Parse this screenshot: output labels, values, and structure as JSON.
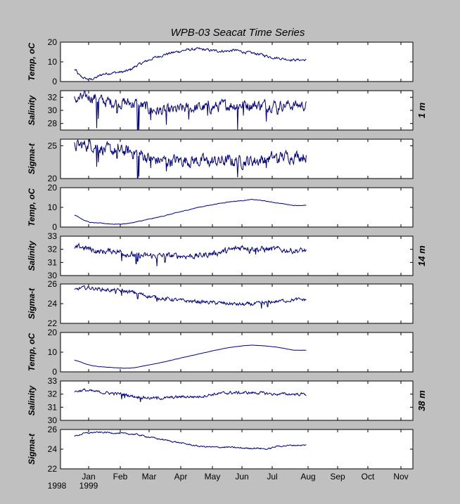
{
  "title": "WPB-03  Seacat Time Series",
  "colors": {
    "background": "#c0c0c0",
    "axes": "#ffffff",
    "line": "#000080",
    "text": "#000000"
  },
  "x_ticks": [
    "Jan",
    "Feb",
    "Mar",
    "Apr",
    "May",
    "Jun",
    "Jul",
    "Aug",
    "Sep",
    "Oct",
    "Nov"
  ],
  "year_labels": [
    "1998",
    "1999"
  ],
  "depth_labels": [
    "1 m",
    "14 m",
    "38 m"
  ],
  "chart_data": [
    {
      "type": "line",
      "depth": "1 m",
      "ylabel": "Temp, oC",
      "ylim": [
        0,
        20
      ],
      "yticks": [
        0,
        10,
        20
      ],
      "knots": [
        [
          0,
          6
        ],
        [
          0.06,
          5.5
        ],
        [
          0.1,
          4
        ],
        [
          0.2,
          2.5
        ],
        [
          0.35,
          1.5
        ],
        [
          0.5,
          1
        ],
        [
          0.6,
          1.5
        ],
        [
          0.7,
          2
        ],
        [
          0.8,
          3
        ],
        [
          0.9,
          3.8
        ],
        [
          1,
          4
        ],
        [
          1.2,
          4.5
        ],
        [
          1.4,
          4.7
        ],
        [
          1.6,
          5
        ],
        [
          1.8,
          6
        ],
        [
          2.0,
          8
        ],
        [
          2.3,
          10
        ],
        [
          2.6,
          12
        ],
        [
          3.0,
          14
        ],
        [
          3.3,
          15
        ],
        [
          3.6,
          16
        ],
        [
          4.0,
          16.5
        ],
        [
          4.3,
          16
        ],
        [
          4.6,
          15.5
        ],
        [
          5.0,
          15.5
        ],
        [
          5.2,
          16
        ],
        [
          5.5,
          15
        ],
        [
          6.0,
          14
        ],
        [
          6.4,
          12.5
        ],
        [
          6.8,
          11.5
        ],
        [
          7.05,
          11
        ]
      ],
      "noise": 0.55
    },
    {
      "type": "line",
      "depth": "1 m",
      "ylabel": "Salinity",
      "ylim": [
        27,
        33
      ],
      "yticks": [
        28,
        30,
        32
      ],
      "knots": [
        [
          0,
          31.6
        ],
        [
          0.3,
          31.9
        ],
        [
          0.5,
          32.1
        ],
        [
          0.7,
          31.9
        ],
        [
          0.8,
          31.5
        ],
        [
          1,
          31.3
        ],
        [
          1.5,
          31.2
        ],
        [
          2,
          31
        ],
        [
          2.3,
          30.5
        ],
        [
          2.6,
          30
        ],
        [
          3,
          29.8
        ],
        [
          3.5,
          30.2
        ],
        [
          4,
          30.4
        ],
        [
          4.5,
          30.5
        ],
        [
          5,
          30.8
        ],
        [
          5.5,
          30.9
        ],
        [
          6,
          30.8
        ],
        [
          6.5,
          30.9
        ],
        [
          7.05,
          30.8
        ]
      ],
      "noise": 0.7,
      "dips": [
        [
          0.7,
          27.3
        ],
        [
          0.76,
          28.7
        ],
        [
          1.35,
          29.6
        ],
        [
          2.05,
          26.5
        ],
        [
          2.1,
          27
        ],
        [
          2.5,
          28.5
        ],
        [
          3.0,
          27.8
        ],
        [
          3.7,
          28.6
        ],
        [
          4.3,
          29.2
        ],
        [
          5.3,
          27.0
        ],
        [
          5.5,
          29.2
        ],
        [
          6.25,
          28.3
        ],
        [
          6.6,
          29.4
        ]
      ]
    },
    {
      "type": "line",
      "depth": "1 m",
      "ylabel": "Sigma-t",
      "ylim": [
        20,
        26
      ],
      "yticks": [
        20,
        25
      ],
      "knots": [
        [
          0,
          24.9
        ],
        [
          0.3,
          25.1
        ],
        [
          0.5,
          25.2
        ],
        [
          0.7,
          25
        ],
        [
          1,
          24.3
        ],
        [
          1.5,
          24.2
        ],
        [
          2,
          24
        ],
        [
          2.3,
          23.4
        ],
        [
          2.6,
          22.8
        ],
        [
          3,
          22.7
        ],
        [
          3.5,
          22.8
        ],
        [
          4,
          22.7
        ],
        [
          4.5,
          22.6
        ],
        [
          5,
          22.7
        ],
        [
          5.5,
          22.6
        ],
        [
          6,
          22.8
        ],
        [
          6.5,
          23.2
        ],
        [
          7.05,
          23.5
        ]
      ],
      "noise": 0.75,
      "dips": [
        [
          0.7,
          21.8
        ],
        [
          0.76,
          22.5
        ],
        [
          1.35,
          23.1
        ],
        [
          2.05,
          20.0
        ],
        [
          2.1,
          20.3
        ],
        [
          2.5,
          21.6
        ],
        [
          3.0,
          21.1
        ],
        [
          3.7,
          21.9
        ],
        [
          4.3,
          22.2
        ],
        [
          5.3,
          20.2
        ],
        [
          5.5,
          22.3
        ],
        [
          6.25,
          21.6
        ],
        [
          6.6,
          22.4
        ]
      ]
    },
    {
      "type": "line",
      "depth": "14 m",
      "ylabel": "Temp, oC",
      "ylim": [
        0,
        20
      ],
      "yticks": [
        0,
        10,
        20
      ],
      "knots": [
        [
          0,
          6
        ],
        [
          0.1,
          5.5
        ],
        [
          0.3,
          3.5
        ],
        [
          0.5,
          2.3
        ],
        [
          0.8,
          2
        ],
        [
          1.2,
          1.5
        ],
        [
          1.5,
          1.5
        ],
        [
          1.8,
          2
        ],
        [
          2.2,
          3.2
        ],
        [
          2.6,
          4.5
        ],
        [
          3,
          6
        ],
        [
          3.5,
          8
        ],
        [
          4,
          10
        ],
        [
          4.5,
          11.5
        ],
        [
          5,
          12.8
        ],
        [
          5.5,
          13.5
        ],
        [
          5.8,
          14
        ],
        [
          6.1,
          13.5
        ],
        [
          6.5,
          12.5
        ],
        [
          7.05,
          11
        ]
      ],
      "noise": 0.12
    },
    {
      "type": "line",
      "depth": "14 m",
      "ylabel": "Salinity",
      "ylim": [
        30,
        33
      ],
      "yticks": [
        30,
        31,
        32,
        33
      ],
      "knots": [
        [
          0,
          32
        ],
        [
          0.2,
          32.2
        ],
        [
          0.5,
          32
        ],
        [
          0.8,
          31.8
        ],
        [
          1.3,
          31.9
        ],
        [
          1.6,
          31.7
        ],
        [
          2,
          31.5
        ],
        [
          2.5,
          31.5
        ],
        [
          3,
          31.5
        ],
        [
          3.5,
          31.5
        ],
        [
          4,
          31.5
        ],
        [
          4.5,
          31.7
        ],
        [
          5,
          31.9
        ],
        [
          5.5,
          32.2
        ],
        [
          6,
          32
        ],
        [
          6.5,
          32
        ],
        [
          7.05,
          31.9
        ]
      ],
      "noise": 0.18,
      "dips": [
        [
          1.5,
          31.1
        ],
        [
          2.0,
          30.9
        ],
        [
          2.05,
          31.1
        ],
        [
          2.7,
          30.7
        ],
        [
          2.95,
          31.0
        ],
        [
          5.7,
          31.7
        ],
        [
          5.9,
          31.6
        ]
      ]
    },
    {
      "type": "line",
      "depth": "14 m",
      "ylabel": "Sigma-t",
      "ylim": [
        22,
        26
      ],
      "yticks": [
        22,
        24,
        26
      ],
      "knots": [
        [
          0,
          25.3
        ],
        [
          0.2,
          25.6
        ],
        [
          0.5,
          25.6
        ],
        [
          1,
          25.4
        ],
        [
          1.5,
          25.3
        ],
        [
          2,
          25.1
        ],
        [
          2.5,
          24.7
        ],
        [
          3,
          24.5
        ],
        [
          3.5,
          24.3
        ],
        [
          4,
          24.2
        ],
        [
          4.5,
          24.1
        ],
        [
          5,
          24
        ],
        [
          5.5,
          23.9
        ],
        [
          6,
          24
        ],
        [
          6.5,
          24.2
        ],
        [
          7.05,
          24.4
        ]
      ],
      "noise": 0.15,
      "dips": [
        [
          1.3,
          25.0
        ],
        [
          1.5,
          24.8
        ],
        [
          2.05,
          24.5
        ],
        [
          2.7,
          24.2
        ],
        [
          2.95,
          24.3
        ],
        [
          6.1,
          23.5
        ],
        [
          6.3,
          23.7
        ]
      ]
    },
    {
      "type": "line",
      "depth": "38 m",
      "ylabel": "Temp, oC",
      "ylim": [
        0,
        20
      ],
      "yticks": [
        0,
        10,
        20
      ],
      "knots": [
        [
          0,
          6
        ],
        [
          0.2,
          5
        ],
        [
          0.4,
          3.8
        ],
        [
          0.6,
          3
        ],
        [
          0.8,
          2.6
        ],
        [
          1,
          2.4
        ],
        [
          1.3,
          2.1
        ],
        [
          1.6,
          1.8
        ],
        [
          1.9,
          2
        ],
        [
          2.2,
          2.8
        ],
        [
          2.6,
          4
        ],
        [
          3,
          5.3
        ],
        [
          3.5,
          7.2
        ],
        [
          4,
          9
        ],
        [
          4.5,
          10.8
        ],
        [
          5,
          12.3
        ],
        [
          5.5,
          13.3
        ],
        [
          5.8,
          13.6
        ],
        [
          6.2,
          13.2
        ],
        [
          6.6,
          12.5
        ],
        [
          7.05,
          11
        ]
      ],
      "noise": 0.05
    },
    {
      "type": "line",
      "depth": "38 m",
      "ylabel": "Salinity",
      "ylim": [
        30,
        33
      ],
      "yticks": [
        30,
        31,
        32,
        33
      ],
      "knots": [
        [
          0,
          32.2
        ],
        [
          0.3,
          32.3
        ],
        [
          0.6,
          32.2
        ],
        [
          1,
          32.1
        ],
        [
          1.5,
          32
        ],
        [
          2,
          31.8
        ],
        [
          2.5,
          31.7
        ],
        [
          3,
          31.7
        ],
        [
          3.5,
          31.8
        ],
        [
          4,
          31.8
        ],
        [
          4.5,
          32
        ],
        [
          5,
          32.1
        ],
        [
          5.5,
          32.1
        ],
        [
          6,
          32.1
        ],
        [
          6.5,
          32
        ],
        [
          7.05,
          32
        ]
      ],
      "noise": 0.09,
      "dips": [
        [
          1.5,
          31.6
        ],
        [
          1.6,
          31.7
        ],
        [
          2.15,
          31.4
        ],
        [
          2.7,
          31.6
        ]
      ]
    },
    {
      "type": "line",
      "depth": "38 m",
      "ylabel": "Sigma-t",
      "ylim": [
        22,
        26
      ],
      "yticks": [
        22,
        24,
        26
      ],
      "knots": [
        [
          0,
          25.3
        ],
        [
          0.3,
          25.6
        ],
        [
          0.6,
          25.7
        ],
        [
          1,
          25.7
        ],
        [
          1.5,
          25.6
        ],
        [
          2,
          25.5
        ],
        [
          2.5,
          25.2
        ],
        [
          3,
          24.9
        ],
        [
          3.5,
          24.6
        ],
        [
          4,
          24.3
        ],
        [
          4.5,
          24.2
        ],
        [
          5,
          24.2
        ],
        [
          5.5,
          24.1
        ],
        [
          6,
          24.1
        ],
        [
          6.3,
          24
        ],
        [
          6.6,
          24.3
        ],
        [
          7.05,
          24.4
        ]
      ],
      "noise": 0.06
    }
  ]
}
